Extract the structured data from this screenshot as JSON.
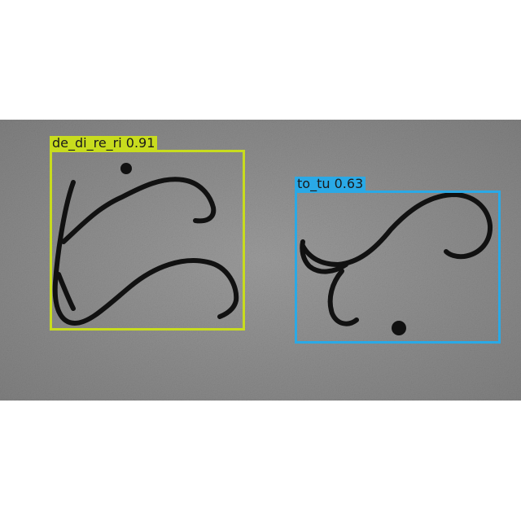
{
  "image": {
    "background": "#ffffff",
    "photo_surface": "gray textured paper with handwritten ink characters"
  },
  "detections": [
    {
      "class": "de_di_re_ri",
      "confidence": "0.91",
      "label": "de_di_re_ri 0.91",
      "color": "#c8dc1e"
    },
    {
      "class": "to_tu",
      "confidence": "0.63",
      "label": "to_tu 0.63",
      "color": "#2aa9e6"
    }
  ]
}
